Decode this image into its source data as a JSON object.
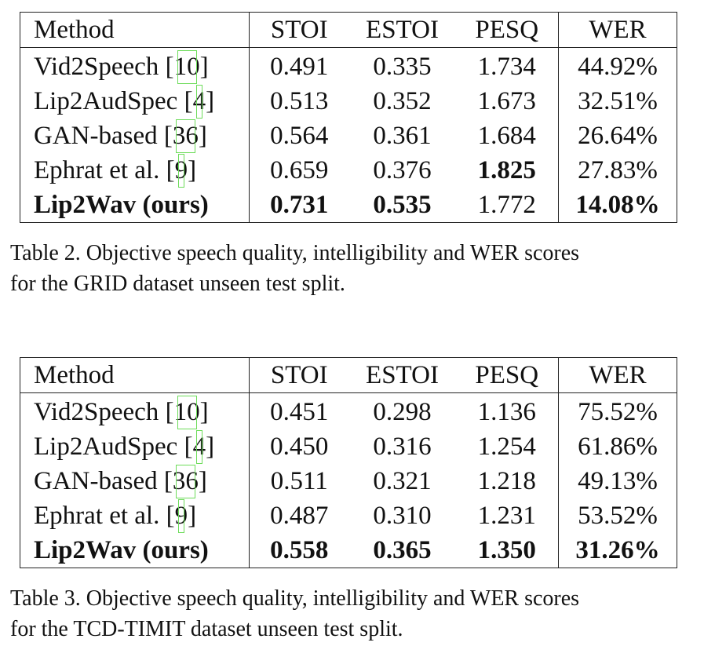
{
  "tables": [
    {
      "header": [
        "Method",
        "STOI",
        "ESTOI",
        "PESQ",
        "WER"
      ],
      "rows": [
        {
          "method": "Vid2Speech",
          "ref": "10",
          "stoi": "0.491",
          "estoi": "0.335",
          "pesq": "1.734",
          "wer": "44.92%"
        },
        {
          "method": "Lip2AudSpec",
          "ref": "4",
          "stoi": "0.513",
          "estoi": "0.352",
          "pesq": "1.673",
          "wer": "32.51%"
        },
        {
          "method": "GAN-based",
          "ref": "36",
          "stoi": "0.564",
          "estoi": "0.361",
          "pesq": "1.684",
          "wer": "26.64%"
        },
        {
          "method": "Ephrat et al.",
          "ref": "9",
          "stoi": "0.659",
          "estoi": "0.376",
          "pesq": "1.825",
          "wer": "27.83%"
        },
        {
          "method": "Lip2Wav (ours)",
          "ref": "",
          "stoi": "0.731",
          "estoi": "0.535",
          "pesq": "1.772",
          "wer": "14.08%"
        }
      ],
      "caption_line1": "Table 2. Objective speech quality, intelligibility and WER scores",
      "caption_line2": "for the GRID dataset unseen test split."
    },
    {
      "header": [
        "Method",
        "STOI",
        "ESTOI",
        "PESQ",
        "WER"
      ],
      "rows": [
        {
          "method": "Vid2Speech",
          "ref": "10",
          "stoi": "0.451",
          "estoi": "0.298",
          "pesq": "1.136",
          "wer": "75.52%"
        },
        {
          "method": "Lip2AudSpec",
          "ref": "4",
          "stoi": "0.450",
          "estoi": "0.316",
          "pesq": "1.254",
          "wer": "61.86%"
        },
        {
          "method": "GAN-based",
          "ref": "36",
          "stoi": "0.511",
          "estoi": "0.321",
          "pesq": "1.218",
          "wer": "49.13%"
        },
        {
          "method": "Ephrat et al.",
          "ref": "9",
          "stoi": "0.487",
          "estoi": "0.310",
          "pesq": "1.231",
          "wer": "53.52%"
        },
        {
          "method": "Lip2Wav (ours)",
          "ref": "",
          "stoi": "0.558",
          "estoi": "0.365",
          "pesq": "1.350",
          "wer": "31.26%"
        }
      ],
      "caption_line1": "Table 3. Objective speech quality, intelligibility and WER scores",
      "caption_line2": "for the TCD-TIMIT dataset unseen test split."
    }
  ]
}
